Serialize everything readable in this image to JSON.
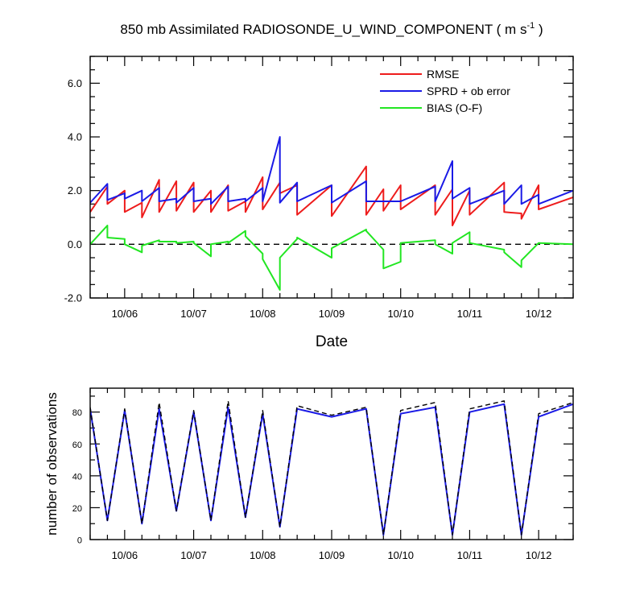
{
  "title_main": "850 mb Assimilated RADIOSONDE_U_WIND_COMPONENT ( m s",
  "title_sup": "-1",
  "title_end": " )",
  "colors": {
    "rmse": "#ee1c1c",
    "sprd": "#1a1ae6",
    "bias": "#22e622",
    "black": "#000000"
  },
  "chart_data": [
    {
      "type": "line",
      "xlabel": "Date",
      "ylabel": "",
      "xlim": [
        5.5,
        12.5
      ],
      "ylim": [
        -2.0,
        7.0
      ],
      "yticks": [
        -2.0,
        0.0,
        2.0,
        4.0,
        6.0
      ],
      "ytick_labels": [
        "-2.0",
        "0.0",
        "2.0",
        "4.0",
        "6.0"
      ],
      "xticks": [
        6,
        7,
        8,
        9,
        10,
        11,
        12
      ],
      "xtick_labels": [
        "10/06",
        "10/07",
        "10/08",
        "10/09",
        "10/10",
        "10/11",
        "10/12"
      ],
      "reference_line": 0.0,
      "legend": {
        "position": "top-right",
        "entries": [
          "RMSE",
          "SPRD + ob error",
          "BIAS (O-F)"
        ]
      },
      "series": [
        {
          "name": "RMSE",
          "color": "#ee1c1c",
          "x": [
            5.5,
            5.75,
            5.75,
            6.0,
            6.0,
            6.25,
            6.25,
            6.5,
            6.5,
            6.75,
            6.75,
            7.0,
            7.0,
            7.25,
            7.25,
            7.5,
            7.5,
            7.75,
            7.75,
            8.0,
            8.0,
            8.25,
            8.25,
            8.5,
            8.5,
            9.0,
            9.0,
            9.5,
            9.5,
            9.75,
            9.75,
            10.0,
            10.0,
            10.5,
            10.5,
            10.75,
            10.75,
            11.0,
            11.0,
            11.5,
            11.5,
            11.75,
            11.75,
            12.0,
            12.0,
            12.5
          ],
          "y": [
            1.2,
            2.15,
            1.5,
            2.0,
            1.2,
            1.55,
            1.0,
            2.4,
            1.2,
            2.35,
            1.25,
            2.3,
            1.2,
            2.0,
            1.2,
            2.2,
            1.25,
            1.6,
            1.2,
            2.5,
            1.3,
            2.3,
            1.9,
            2.2,
            1.1,
            2.2,
            1.05,
            2.9,
            1.1,
            2.05,
            1.25,
            2.2,
            1.3,
            2.2,
            1.1,
            2.05,
            0.7,
            2.0,
            1.1,
            2.3,
            1.2,
            1.15,
            0.95,
            2.2,
            1.3,
            1.75
          ]
        },
        {
          "name": "SPRD + ob error",
          "color": "#1a1ae6",
          "x": [
            5.5,
            5.75,
            5.75,
            6.0,
            6.0,
            6.25,
            6.25,
            6.5,
            6.5,
            6.75,
            6.75,
            7.0,
            7.0,
            7.25,
            7.25,
            7.5,
            7.5,
            7.75,
            7.75,
            8.0,
            8.0,
            8.25,
            8.25,
            8.5,
            8.5,
            9.0,
            9.0,
            9.5,
            9.5,
            9.75,
            9.75,
            10.0,
            10.0,
            10.5,
            10.5,
            10.75,
            10.75,
            11.0,
            11.0,
            11.5,
            11.5,
            11.75,
            11.75,
            12.0,
            12.0,
            12.5
          ],
          "y": [
            1.55,
            2.25,
            1.65,
            1.9,
            1.7,
            2.0,
            1.6,
            2.1,
            1.6,
            1.7,
            1.55,
            2.1,
            1.6,
            1.7,
            1.5,
            2.15,
            1.6,
            1.7,
            1.6,
            2.1,
            1.6,
            4.0,
            1.55,
            2.3,
            1.6,
            2.2,
            1.55,
            2.35,
            1.6,
            1.6,
            1.6,
            1.6,
            1.6,
            2.15,
            1.6,
            3.1,
            1.7,
            2.1,
            1.5,
            2.0,
            1.5,
            2.2,
            1.5,
            1.85,
            1.5,
            2.0
          ]
        },
        {
          "name": "BIAS (O-F)",
          "color": "#22e622",
          "x": [
            5.5,
            5.75,
            5.75,
            6.0,
            6.0,
            6.25,
            6.25,
            6.5,
            6.5,
            6.75,
            6.75,
            7.0,
            7.0,
            7.25,
            7.25,
            7.5,
            7.5,
            7.75,
            7.75,
            8.0,
            8.0,
            8.25,
            8.25,
            8.5,
            8.5,
            9.0,
            9.0,
            9.5,
            9.5,
            9.75,
            9.75,
            10.0,
            10.0,
            10.5,
            10.5,
            10.75,
            10.75,
            11.0,
            11.0,
            11.5,
            11.5,
            11.75,
            11.75,
            12.0,
            12.0,
            12.5
          ],
          "y": [
            0.0,
            0.7,
            0.25,
            0.2,
            0.0,
            -0.3,
            -0.05,
            0.15,
            0.1,
            0.1,
            0.05,
            0.1,
            0.05,
            -0.45,
            0.0,
            0.1,
            0.05,
            0.5,
            0.3,
            -0.35,
            -0.55,
            -1.7,
            -0.5,
            0.2,
            0.25,
            -0.5,
            -0.15,
            0.55,
            0.5,
            -0.2,
            -0.9,
            -0.65,
            0.05,
            0.15,
            0.0,
            -0.35,
            0.05,
            0.45,
            0.05,
            -0.2,
            -0.3,
            -0.85,
            -0.6,
            0.05,
            0.05,
            0.0
          ]
        }
      ]
    },
    {
      "type": "line",
      "xlabel": "",
      "ylabel": "number of observations",
      "xlim": [
        5.5,
        12.5
      ],
      "ylim": [
        0,
        95
      ],
      "yticks": [
        0,
        20,
        40,
        60,
        80
      ],
      "ytick_labels": [
        "0",
        "20",
        "40",
        "60",
        "80"
      ],
      "xticks": [
        6,
        7,
        8,
        9,
        10,
        11,
        12
      ],
      "xtick_labels": [
        "10/06",
        "10/07",
        "10/08",
        "10/09",
        "10/10",
        "10/11",
        "10/12"
      ],
      "series": [
        {
          "color": "#1a1ae6",
          "style": "solid",
          "x": [
            5.5,
            5.75,
            6.0,
            6.25,
            6.5,
            6.75,
            7.0,
            7.25,
            7.5,
            7.75,
            8.0,
            8.25,
            8.5,
            9.0,
            9.5,
            9.75,
            10.0,
            10.5,
            10.75,
            11.0,
            11.5,
            11.75,
            12.0,
            12.5
          ],
          "y": [
            82,
            12,
            81,
            10,
            82,
            18,
            80,
            12,
            83,
            14,
            79,
            8,
            82,
            77,
            82,
            3,
            79,
            83,
            3,
            80,
            85,
            3,
            77,
            85
          ]
        },
        {
          "color": "#000000",
          "style": "dashed",
          "x": [
            5.5,
            5.75,
            6.0,
            6.25,
            6.5,
            6.75,
            7.0,
            7.25,
            7.5,
            7.75,
            8.0,
            8.25,
            8.5,
            9.0,
            9.5,
            9.75,
            10.0,
            10.5,
            10.75,
            11.0,
            11.5,
            11.75,
            12.0,
            12.5
          ],
          "y": [
            83,
            12,
            82,
            10,
            86,
            18,
            81,
            12,
            87,
            14,
            81,
            8,
            84,
            78,
            83,
            3,
            81,
            86,
            3,
            82,
            87,
            3,
            79,
            86
          ]
        }
      ]
    }
  ]
}
